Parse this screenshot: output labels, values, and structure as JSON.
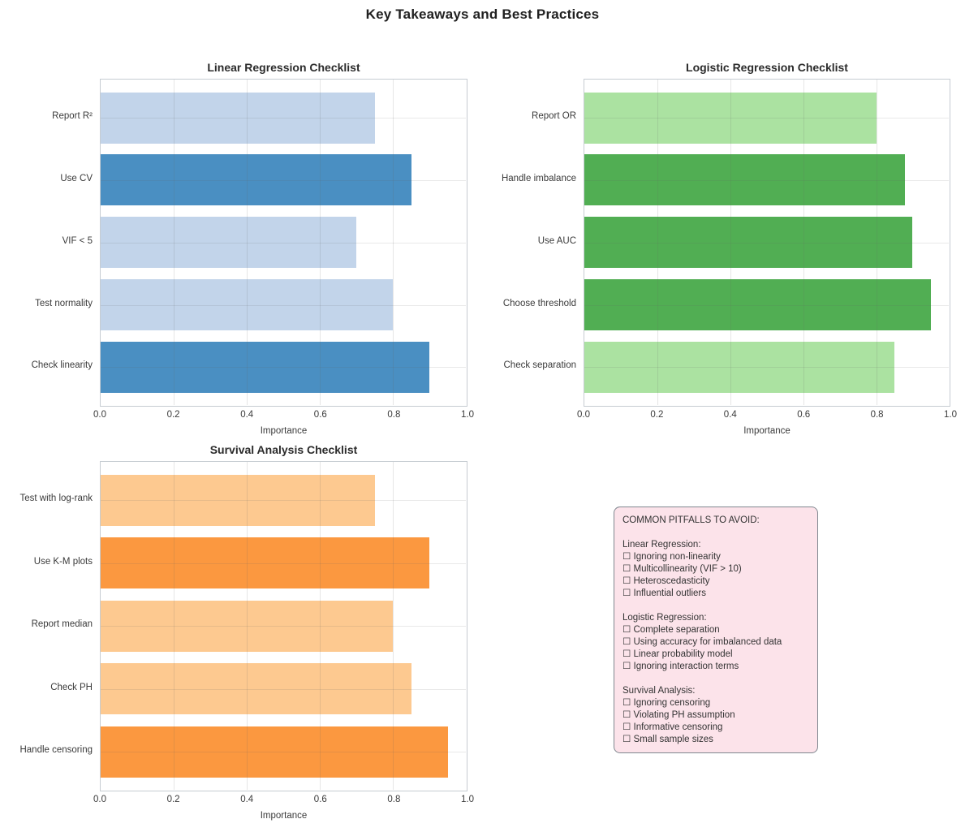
{
  "page_title": "Key Takeaways and Best Practices",
  "colors": {
    "blue_dark": "#4a8fc2",
    "blue_light": "#c2d4ea",
    "green_dark": "#51ae53",
    "green_light": "#abe2a1",
    "orange_dark": "#fb9840",
    "orange_light": "#fdc990",
    "grid": "#d9d9d9",
    "spine": "#c6ccd2",
    "pitfalls_bg": "#fce3ea",
    "pitfalls_border": "#7f878f"
  },
  "chart_data": [
    {
      "type": "bar",
      "orientation": "horizontal",
      "title": "Linear Regression Checklist",
      "categories": [
        "Report R²",
        "Use CV",
        "VIF < 5",
        "Test normality",
        "Check linearity"
      ],
      "values": [
        0.75,
        0.85,
        0.7,
        0.8,
        0.9
      ],
      "bar_colors": [
        "#c2d4ea",
        "#4a8fc2",
        "#c2d4ea",
        "#c2d4ea",
        "#4a8fc2"
      ],
      "xlabel": "Importance",
      "xlim": [
        0.0,
        1.0
      ],
      "xticks": [
        "0.0",
        "0.2",
        "0.4",
        "0.6",
        "0.8",
        "1.0"
      ],
      "grid": true,
      "legend": false
    },
    {
      "type": "bar",
      "orientation": "horizontal",
      "title": "Logistic Regression Checklist",
      "categories": [
        "Report OR",
        "Handle imbalance",
        "Use AUC",
        "Choose threshold",
        "Check separation"
      ],
      "values": [
        0.8,
        0.88,
        0.9,
        0.95,
        0.85
      ],
      "bar_colors": [
        "#abe2a1",
        "#51ae53",
        "#51ae53",
        "#51ae53",
        "#abe2a1"
      ],
      "xlabel": "Importance",
      "xlim": [
        0.0,
        1.0
      ],
      "xticks": [
        "0.0",
        "0.2",
        "0.4",
        "0.6",
        "0.8",
        "1.0"
      ],
      "grid": true,
      "legend": false
    },
    {
      "type": "bar",
      "orientation": "horizontal",
      "title": "Survival Analysis Checklist",
      "categories": [
        "Test with log-rank",
        "Use K-M plots",
        "Report median",
        "Check PH",
        "Handle censoring"
      ],
      "values": [
        0.75,
        0.9,
        0.8,
        0.85,
        0.95
      ],
      "bar_colors": [
        "#fdc990",
        "#fb9840",
        "#fdc990",
        "#fdc990",
        "#fb9840"
      ],
      "xlabel": "Importance",
      "xlim": [
        0.0,
        1.0
      ],
      "xticks": [
        "0.0",
        "0.2",
        "0.4",
        "0.6",
        "0.8",
        "1.0"
      ],
      "grid": true,
      "legend": false
    }
  ],
  "pitfalls_box": {
    "title": "COMMON PITFALLS TO AVOID:",
    "sections": [
      {
        "heading": "Linear Regression:",
        "items": [
          "☐ Ignoring non-linearity",
          "☐ Multicollinearity (VIF > 10)",
          "☐ Heteroscedasticity",
          "☐ Influential outliers"
        ]
      },
      {
        "heading": "Logistic Regression:",
        "items": [
          "☐ Complete separation",
          "☐ Using accuracy for imbalanced data",
          "☐ Linear probability model",
          "☐ Ignoring interaction terms"
        ]
      },
      {
        "heading": "Survival Analysis:",
        "items": [
          "☐ Ignoring censoring",
          "☐ Violating PH assumption",
          "☐ Informative censoring",
          "☐ Small sample sizes"
        ]
      }
    ]
  }
}
